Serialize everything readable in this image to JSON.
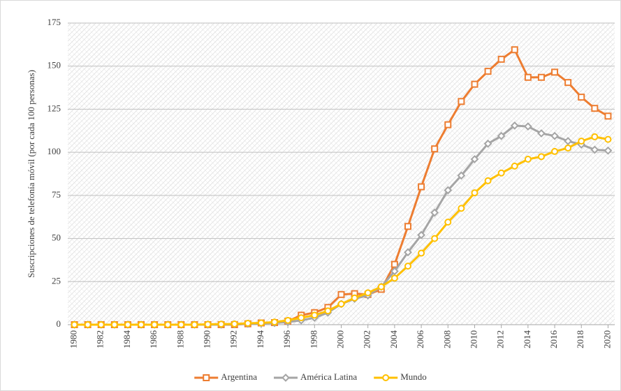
{
  "chart_data": {
    "type": "line",
    "y_label": "Suscripciones de telefonía móvil (por cada 100 personas)",
    "x": [
      1980,
      1981,
      1982,
      1983,
      1984,
      1985,
      1986,
      1987,
      1988,
      1989,
      1990,
      1991,
      1992,
      1993,
      1994,
      1995,
      1996,
      1997,
      1998,
      1999,
      2000,
      2001,
      2002,
      2003,
      2004,
      2005,
      2006,
      2007,
      2008,
      2009,
      2010,
      2011,
      2012,
      2013,
      2014,
      2015,
      2016,
      2017,
      2018,
      2019,
      2020
    ],
    "series": [
      {
        "name": "Argentina",
        "color": "#ed7d31",
        "marker": "square",
        "values": [
          0,
          0,
          0,
          0,
          0,
          0,
          0,
          0,
          0,
          0,
          0,
          0,
          0,
          0.5,
          1,
          1.2,
          2,
          5.5,
          7,
          10,
          17.5,
          18,
          17.5,
          20.5,
          35,
          57,
          80,
          102,
          116,
          129.5,
          139.5,
          147,
          154,
          159.5,
          143.5,
          143.5,
          146.5,
          140.5,
          132,
          125.5,
          121
        ]
      },
      {
        "name": "América Latina",
        "color": "#a5a5a5",
        "marker": "diamond",
        "values": [
          0,
          0,
          0,
          0,
          0,
          0,
          0,
          0,
          0,
          0,
          0,
          0,
          0.2,
          0.5,
          0.8,
          1,
          1.5,
          2.5,
          4,
          7,
          12,
          15,
          17,
          22,
          31,
          42,
          52,
          65,
          78,
          86.5,
          96,
          105,
          109.5,
          115.5,
          115,
          111,
          109.5,
          106.5,
          104.5,
          101.5,
          101
        ]
      },
      {
        "name": "Mundo",
        "color": "#ffc000",
        "marker": "circle",
        "values": [
          0,
          0,
          0,
          0,
          0,
          0,
          0,
          0,
          0,
          0,
          0.2,
          0.3,
          0.4,
          0.8,
          1,
          1.5,
          2.5,
          4,
          5.5,
          8,
          12,
          15.5,
          18.5,
          22,
          27,
          34,
          41.5,
          50,
          59.5,
          67.5,
          76.5,
          83.5,
          88,
          92,
          96,
          97.5,
          100.5,
          102.5,
          106.5,
          109,
          107.5
        ]
      }
    ],
    "xlim": [
      1979.5,
      2020.5
    ],
    "xticks": [
      1980,
      1982,
      1984,
      1986,
      1988,
      1990,
      1992,
      1994,
      1996,
      1998,
      2000,
      2002,
      2004,
      2006,
      2008,
      2010,
      2012,
      2014,
      2016,
      2018,
      2020
    ],
    "ylim": [
      0,
      175
    ],
    "yticks": [
      0,
      25,
      50,
      75,
      100,
      125,
      150,
      175
    ],
    "grid": true,
    "legend": "bottom"
  }
}
